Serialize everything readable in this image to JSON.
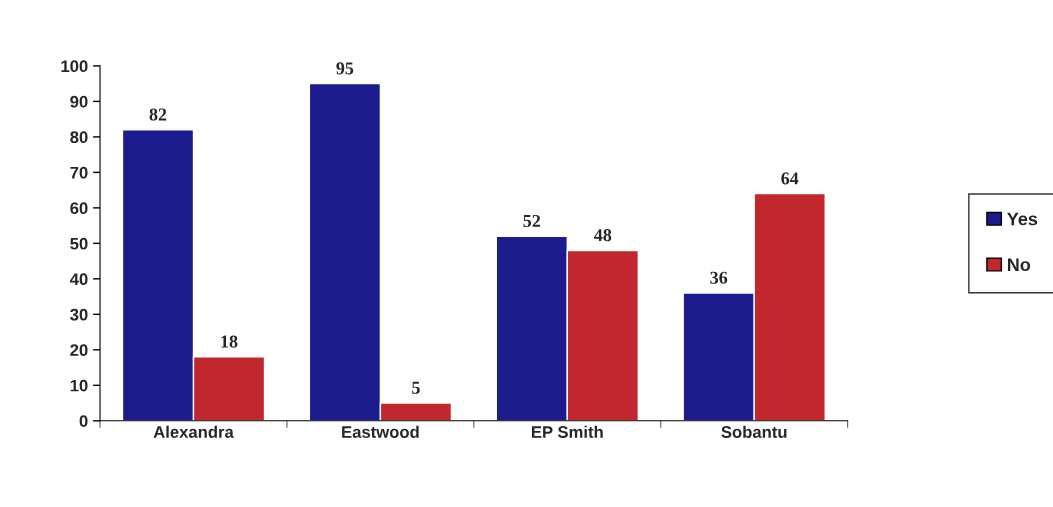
{
  "chart_data": {
    "type": "bar",
    "categories": [
      "Alexandra",
      "Eastwood",
      "EP Smith",
      "Sobantu"
    ],
    "series": [
      {
        "name": "Yes",
        "color": "#1c1c8e",
        "values": [
          82,
          95,
          52,
          36
        ]
      },
      {
        "name": "No",
        "color": "#c2272d",
        "values": [
          18,
          5,
          48,
          64
        ]
      }
    ],
    "ylim": [
      0,
      100
    ],
    "yticks": [
      0,
      10,
      20,
      30,
      40,
      50,
      60,
      70,
      80,
      90,
      100
    ],
    "grid": false,
    "legend": "right",
    "data_labels": true
  }
}
